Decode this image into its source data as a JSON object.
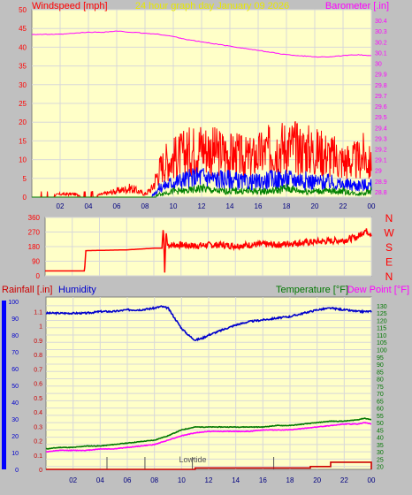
{
  "colors": {
    "background": "#c0c0c0",
    "plot_fill": "#ffffc8",
    "grid": "#d8d8d8",
    "wind_speed": "#ff0000",
    "wind_mid": "#0000ff",
    "wind_low": "#008000",
    "barometer": "#ff00ff",
    "wind_direction": "#ff0000",
    "rainfall": "#cc0000",
    "humidity": "#0000cc",
    "temperature": "#007700",
    "dew_point": "#ff00ff",
    "title": "#e8e800"
  },
  "chart_data": [
    {
      "type": "line",
      "title": "24 hour graph day   January 09 2026",
      "ylabel_left": "Windspeed [mph]",
      "ylabel_right": "Barometer [.in]",
      "x_tick_labels": [
        "02",
        "04",
        "06",
        "08",
        "10",
        "12",
        "14",
        "16",
        "18",
        "20",
        "22",
        "00"
      ],
      "xlim_hours": [
        0,
        24
      ],
      "ylim_left": [
        0,
        50
      ],
      "y_ticks_left": [
        0,
        5,
        10,
        15,
        20,
        25,
        30,
        35,
        40,
        45,
        50
      ],
      "ylim_right": [
        28.75,
        30.5
      ],
      "y_ticks_right": [
        "28.8",
        "28.9",
        "29",
        "29.1",
        "29.2",
        "29.3",
        "29.4",
        "29.5",
        "29.6",
        "29.7",
        "29.8",
        "29.9",
        "30",
        "30.1",
        "30.2",
        "30.3",
        "30.4"
      ],
      "series": [
        {
          "name": "Wind gust",
          "x": [
            0,
            1,
            2,
            3,
            4,
            5,
            6,
            7,
            8,
            8.5,
            9,
            9.5,
            10,
            10.5,
            11,
            11.5,
            12,
            12.5,
            13,
            13.5,
            14,
            14.5,
            15,
            15.5,
            16,
            16.5,
            17,
            17.5,
            18,
            18.5,
            19,
            19.5,
            20,
            20.5,
            21,
            21.5,
            22,
            22.5,
            23,
            23.5,
            24
          ],
          "values": [
            0,
            0,
            1,
            1,
            0,
            1,
            2,
            3,
            1,
            3,
            9,
            12,
            13,
            14,
            15,
            16,
            17,
            16,
            15,
            15,
            14,
            14,
            13,
            13,
            14,
            15,
            16,
            17,
            17,
            17,
            16,
            16,
            15,
            15,
            14,
            13,
            12,
            12,
            12,
            14,
            10
          ]
        },
        {
          "name": "Wind speed",
          "x": [
            0,
            8,
            8.5,
            9,
            10,
            11,
            12,
            13,
            14,
            15,
            16,
            17,
            18,
            19,
            20,
            21,
            22,
            23,
            24
          ],
          "values": [
            0,
            0,
            0.5,
            3,
            5,
            6,
            7,
            6,
            6,
            5,
            5,
            6,
            6,
            6,
            5,
            5,
            4,
            4,
            4
          ]
        },
        {
          "name": "Wind low",
          "x": [
            0,
            8,
            8.5,
            9,
            10,
            11,
            12,
            13,
            14,
            15,
            16,
            17,
            18,
            19,
            20,
            21,
            22,
            23,
            24
          ],
          "values": [
            0,
            0,
            0,
            1,
            2,
            2,
            3,
            2,
            2,
            2,
            2,
            2,
            3,
            2,
            2,
            2,
            2,
            1,
            2
          ]
        },
        {
          "name": "Barometer",
          "x": [
            0,
            1,
            2,
            3,
            4,
            5,
            6,
            7,
            8,
            9,
            10,
            11,
            12,
            13,
            14,
            15,
            16,
            17,
            18,
            19,
            20,
            21,
            22,
            23,
            24
          ],
          "values": [
            30.27,
            30.27,
            30.27,
            30.28,
            30.29,
            30.29,
            30.3,
            30.29,
            30.28,
            30.27,
            30.25,
            30.22,
            30.2,
            30.18,
            30.16,
            30.14,
            30.12,
            30.1,
            30.08,
            30.07,
            30.06,
            30.06,
            30.07,
            30.08,
            30.07
          ]
        }
      ]
    },
    {
      "type": "line",
      "ylim": [
        0,
        360
      ],
      "y_ticks": [
        0,
        90,
        180,
        270,
        360
      ],
      "compass_labels": [
        "N",
        "W",
        "S",
        "E",
        "N"
      ],
      "series": [
        {
          "name": "Wind direction",
          "x": [
            0,
            2.9,
            3,
            6,
            7,
            8,
            8.6,
            8.7,
            8.8,
            8.9,
            9,
            10,
            11,
            12,
            13,
            14,
            15,
            16,
            17,
            18,
            19,
            20,
            21,
            22,
            23,
            23.5,
            24
          ],
          "values": [
            30,
            30,
            155,
            160,
            165,
            170,
            170,
            310,
            20,
            280,
            190,
            190,
            185,
            190,
            190,
            185,
            190,
            195,
            190,
            200,
            205,
            210,
            215,
            220,
            240,
            280,
            260
          ]
        }
      ]
    },
    {
      "type": "line",
      "ylabel_left": "Rainfall [.in]",
      "ylabel_left_2": "Humidity",
      "ylabel_right": "Temperature [°F]",
      "ylabel_right_2": "Dew Point [°F]",
      "x_tick_labels": [
        "02",
        "04",
        "06",
        "08",
        "10",
        "12",
        "14",
        "16",
        "18",
        "20",
        "22",
        "00"
      ],
      "xlim_hours": [
        0,
        24
      ],
      "ylim_rain": [
        0,
        1.2
      ],
      "y_ticks_rain": [
        "0",
        "0.1",
        "0.2",
        "0.3",
        "0.4",
        "0.5",
        "0.6",
        "0.7",
        "0.8",
        "0.9",
        "1",
        "1.1"
      ],
      "ylim_humidity": [
        0,
        100
      ],
      "y_ticks_humidity": [
        0,
        10,
        20,
        30,
        40,
        50,
        60,
        70,
        80,
        90,
        100
      ],
      "ylim_temp": [
        18,
        136
      ],
      "y_ticks_temp": [
        20,
        25,
        30,
        35,
        40,
        45,
        50,
        55,
        60,
        65,
        70,
        75,
        80,
        85,
        90,
        95,
        100,
        105,
        110,
        115,
        120,
        125,
        130
      ],
      "annotation": "Lowtide",
      "series": [
        {
          "name": "Humidity",
          "x": [
            0,
            1,
            2,
            3,
            4,
            5,
            6,
            7,
            8,
            8.5,
            9,
            9.5,
            10,
            10.5,
            11,
            11.5,
            12,
            13,
            14,
            15,
            16,
            17,
            18,
            19,
            20,
            21,
            22,
            23,
            24
          ],
          "values": [
            93,
            93,
            93,
            93,
            94,
            94,
            95,
            95,
            96,
            97,
            96,
            90,
            84,
            80,
            77,
            78,
            80,
            83,
            86,
            88,
            89,
            90,
            91,
            93,
            95,
            96,
            95,
            94,
            94
          ]
        },
        {
          "name": "Temperature",
          "x": [
            0,
            1,
            2,
            3,
            4,
            5,
            6,
            7,
            8,
            9,
            10,
            11,
            12,
            13,
            14,
            15,
            16,
            17,
            18,
            19,
            20,
            21,
            22,
            23,
            23.5,
            24
          ],
          "values": [
            32,
            33,
            33,
            34,
            34,
            35,
            36,
            37,
            38,
            41,
            45,
            47,
            47,
            47,
            47,
            47,
            47,
            48,
            48,
            49,
            50,
            51,
            51,
            52,
            53,
            52
          ]
        },
        {
          "name": "Dew Point",
          "x": [
            0,
            1,
            2,
            3,
            4,
            5,
            6,
            7,
            8,
            9,
            10,
            11,
            12,
            13,
            14,
            15,
            16,
            17,
            18,
            19,
            20,
            21,
            22,
            23,
            23.5,
            24
          ],
          "values": [
            30,
            31,
            31,
            31,
            32,
            32,
            33,
            34,
            35,
            38,
            41,
            43,
            44,
            44,
            44,
            44,
            45,
            45,
            45,
            46,
            47,
            48,
            49,
            49,
            50,
            49
          ]
        },
        {
          "name": "Rainfall",
          "x": [
            0,
            10.5,
            11,
            19,
            19.5,
            20.5,
            21,
            24
          ],
          "values": [
            0,
            0,
            0.01,
            0.01,
            0.02,
            0.02,
            0.05,
            0.05
          ]
        }
      ],
      "tide_markers_hours": [
        4.5,
        7.3,
        10.8,
        16.8
      ]
    }
  ]
}
